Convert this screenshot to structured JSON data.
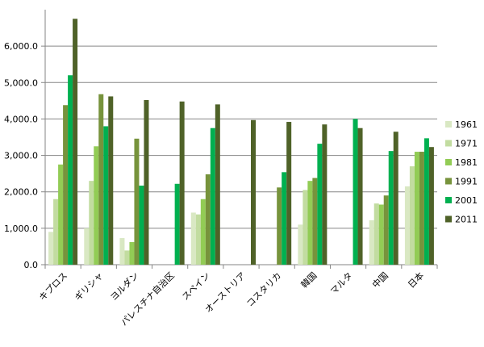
{
  "chart_data": {
    "type": "bar",
    "title": "",
    "xlabel": "",
    "ylabel": "",
    "ylim": [
      0,
      7000
    ],
    "yticks": [
      0,
      1000,
      2000,
      3000,
      4000,
      5000,
      6000
    ],
    "ytick_labels": [
      "0.0",
      "1,000.0",
      "2,000.0",
      "3,000.0",
      "4,000.0",
      "5,000.0",
      "6,000.0"
    ],
    "grid": true,
    "legend_position": "right",
    "categories": [
      "キプロス",
      "ギリシャ",
      "ヨルダン",
      "パレスチナ自治区",
      "スペイン",
      "オーストリア",
      "コスタリカ",
      "韓国",
      "マルタ",
      "中国",
      "日本"
    ],
    "series": [
      {
        "name": "1961",
        "color": "#d9e8c3",
        "values": [
          900,
          1000,
          730,
          null,
          1430,
          null,
          null,
          1100,
          null,
          1220,
          2150
        ]
      },
      {
        "name": "1971",
        "color": "#c2dca0",
        "values": [
          1800,
          2300,
          390,
          null,
          1380,
          null,
          null,
          2050,
          null,
          1680,
          2700
        ]
      },
      {
        "name": "1981",
        "color": "#92cc55",
        "values": [
          2750,
          3250,
          620,
          null,
          1800,
          null,
          null,
          2300,
          null,
          1650,
          3100
        ]
      },
      {
        "name": "1991",
        "color": "#77933c",
        "values": [
          4380,
          4680,
          3460,
          null,
          2480,
          null,
          2120,
          2380,
          null,
          1900,
          3100
        ]
      },
      {
        "name": "2001",
        "color": "#00b050",
        "values": [
          5200,
          3800,
          2170,
          2220,
          3750,
          null,
          2540,
          3320,
          4000,
          3120,
          3470
        ]
      },
      {
        "name": "2011",
        "color": "#4f6228",
        "values": [
          6750,
          4620,
          4520,
          4480,
          4400,
          3970,
          3920,
          3850,
          3750,
          3650,
          3230
        ]
      }
    ]
  }
}
